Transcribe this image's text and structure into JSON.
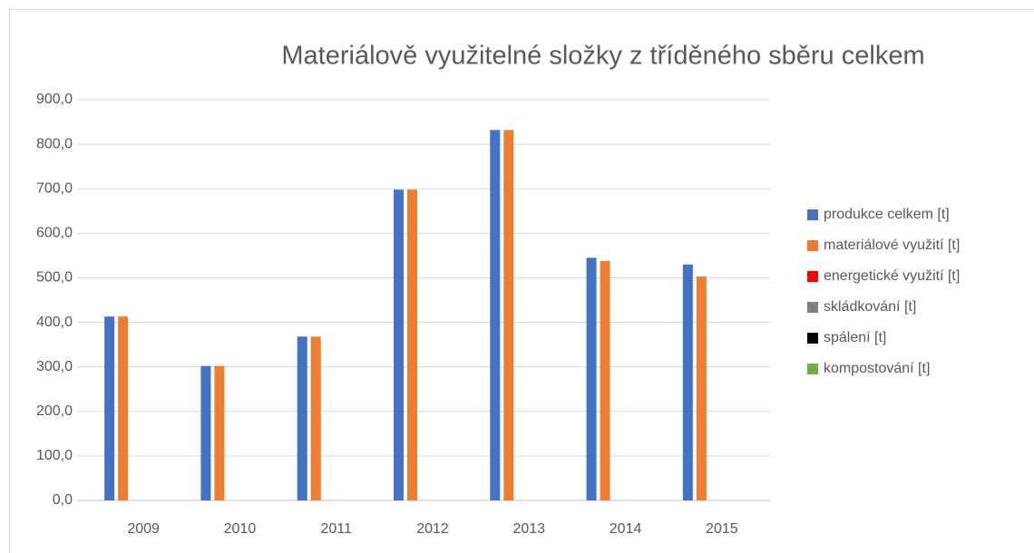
{
  "chart_data": {
    "type": "bar",
    "title": "Materiálově využitelné složky z tříděného sběru celkem",
    "categories": [
      "2009",
      "2010",
      "2011",
      "2012",
      "2013",
      "2014",
      "2015"
    ],
    "series": [
      {
        "name": "produkce celkem [t]",
        "color": "#4472c4",
        "values": [
          413,
          302,
          368,
          698,
          832,
          545,
          530
        ]
      },
      {
        "name": "materiálové využití  [t]",
        "color": "#ed7d31",
        "values": [
          413,
          302,
          368,
          698,
          832,
          538,
          503
        ]
      },
      {
        "name": "energetické využití [t]",
        "color": "#ff0000",
        "values": [
          0,
          0,
          0,
          0,
          0,
          0,
          0
        ]
      },
      {
        "name": "skládkování [t]",
        "color": "#808080",
        "values": [
          0,
          0,
          0,
          0,
          0,
          0,
          0
        ]
      },
      {
        "name": "spálení [t]",
        "color": "#000000",
        "values": [
          0,
          0,
          0,
          0,
          0,
          0,
          0
        ]
      },
      {
        "name": "kompostování [t]",
        "color": "#70ad47",
        "values": [
          0,
          0,
          0,
          0,
          0,
          0,
          0
        ]
      }
    ],
    "ylim": [
      0,
      900
    ],
    "yticks": [
      {
        "value": 0,
        "label": "0,0"
      },
      {
        "value": 100,
        "label": "100,0"
      },
      {
        "value": 200,
        "label": "200,0"
      },
      {
        "value": 300,
        "label": "300,0"
      },
      {
        "value": 400,
        "label": "400,0"
      },
      {
        "value": 500,
        "label": "500,0"
      },
      {
        "value": 600,
        "label": "600,0"
      },
      {
        "value": 700,
        "label": "700,0"
      },
      {
        "value": 800,
        "label": "800,0"
      },
      {
        "value": 900,
        "label": "900,0"
      }
    ],
    "grid": true,
    "legend": "right"
  }
}
